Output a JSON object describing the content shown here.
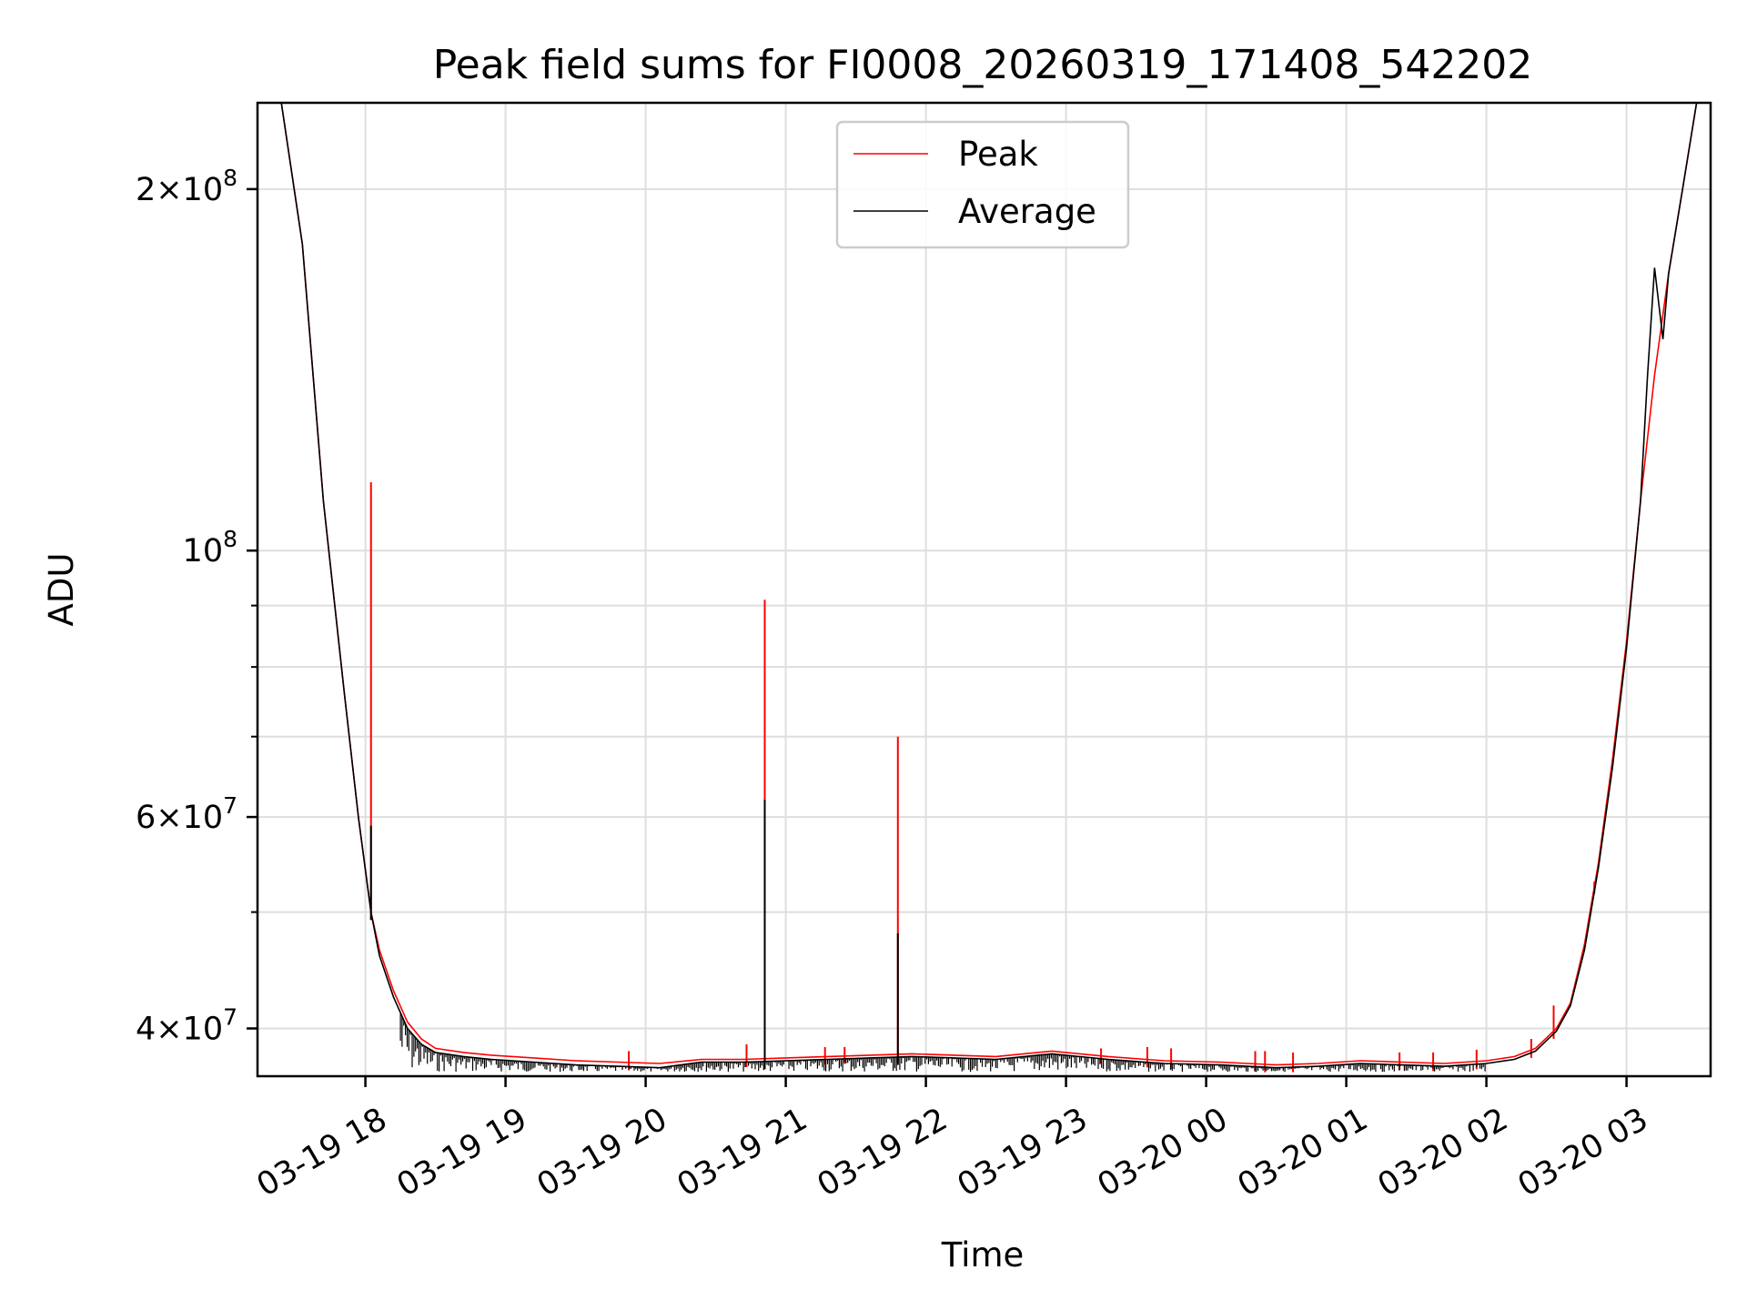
{
  "chart_data": {
    "type": "line",
    "title": "Peak field sums for FI0008_20260319_171408_542202",
    "xlabel": "Time",
    "ylabel": "ADU",
    "yscale": "log",
    "ylim": [
      36500000,
      236000000
    ],
    "xlim_hours": [
      17.23,
      27.6
    ],
    "grid": true,
    "legend_position": "upper-center",
    "x_ticks": [
      {
        "hour": 18,
        "label": "03-19 18"
      },
      {
        "hour": 19,
        "label": "03-19 19"
      },
      {
        "hour": 20,
        "label": "03-19 20"
      },
      {
        "hour": 21,
        "label": "03-19 21"
      },
      {
        "hour": 22,
        "label": "03-19 22"
      },
      {
        "hour": 23,
        "label": "03-19 23"
      },
      {
        "hour": 24,
        "label": "03-20 00"
      },
      {
        "hour": 25,
        "label": "03-20 01"
      },
      {
        "hour": 26,
        "label": "03-20 02"
      },
      {
        "hour": 27,
        "label": "03-20 03"
      }
    ],
    "y_ticks": [
      {
        "value": 40000000,
        "mantissa": "4",
        "exponent": "7"
      },
      {
        "value": 60000000,
        "mantissa": "6",
        "exponent": "7"
      },
      {
        "value": 100000000,
        "mantissa": "",
        "exponent": "8"
      },
      {
        "value": 200000000,
        "mantissa": "2",
        "exponent": "8"
      }
    ],
    "y_minor_ticks": [
      50000000,
      70000000,
      80000000,
      90000000
    ],
    "series": [
      {
        "name": "Peak",
        "color": "#ff0000",
        "x_hours": [
          17.23,
          17.4,
          17.55,
          17.7,
          17.85,
          17.95,
          18.04,
          18.1,
          18.2,
          18.3,
          18.4,
          18.5,
          18.7,
          18.9,
          19.2,
          19.5,
          19.8,
          20.1,
          20.4,
          20.7,
          21.0,
          21.3,
          21.6,
          21.9,
          22.2,
          22.5,
          22.9,
          23.3,
          23.7,
          24.1,
          24.5,
          24.8,
          25.1,
          25.4,
          25.7,
          26.0,
          26.2,
          26.35,
          26.5,
          26.6,
          26.7,
          26.8,
          26.9,
          27.0,
          27.1,
          27.2,
          27.3,
          27.4,
          27.5,
          27.6
        ],
        "values": [
          236000000,
          236000000,
          180000000,
          110000000,
          76000000,
          60000000,
          50000000,
          46500000,
          43000000,
          40500000,
          39200000,
          38500000,
          38200000,
          38000000,
          37800000,
          37600000,
          37500000,
          37400000,
          37700000,
          37700000,
          37800000,
          37900000,
          38000000,
          38100000,
          38000000,
          37900000,
          38300000,
          37900000,
          37600000,
          37500000,
          37300000,
          37400000,
          37600000,
          37500000,
          37400000,
          37600000,
          37900000,
          38500000,
          40000000,
          42000000,
          47000000,
          55000000,
          67000000,
          84000000,
          110000000,
          140000000,
          170000000,
          200000000,
          236000000,
          236000000
        ],
        "spikes": [
          {
            "hour": 18.04,
            "value": 114000000
          },
          {
            "hour": 20.85,
            "value": 91000000
          },
          {
            "hour": 21.8,
            "value": 70000000
          },
          {
            "hour": 19.88,
            "value": 38300000
          },
          {
            "hour": 20.72,
            "value": 38800000
          },
          {
            "hour": 21.28,
            "value": 38600000
          },
          {
            "hour": 21.42,
            "value": 38600000
          },
          {
            "hour": 23.25,
            "value": 38500000
          },
          {
            "hour": 23.58,
            "value": 38600000
          },
          {
            "hour": 23.75,
            "value": 38500000
          },
          {
            "hour": 24.35,
            "value": 38300000
          },
          {
            "hour": 24.42,
            "value": 38300000
          },
          {
            "hour": 24.62,
            "value": 38200000
          },
          {
            "hour": 25.38,
            "value": 38200000
          },
          {
            "hour": 25.62,
            "value": 38200000
          },
          {
            "hour": 25.93,
            "value": 38400000
          },
          {
            "hour": 26.32,
            "value": 39200000
          },
          {
            "hour": 26.48,
            "value": 41800000
          },
          {
            "hour": 26.77,
            "value": 53000000
          }
        ]
      },
      {
        "name": "Average",
        "color": "#000000",
        "x_hours": [
          17.23,
          17.4,
          17.55,
          17.7,
          17.85,
          17.95,
          18.04,
          18.1,
          18.2,
          18.3,
          18.4,
          18.5,
          18.7,
          18.9,
          19.2,
          19.5,
          19.8,
          20.1,
          20.4,
          20.7,
          21.0,
          21.3,
          21.6,
          21.9,
          22.2,
          22.5,
          22.9,
          23.3,
          23.7,
          24.1,
          24.5,
          24.8,
          25.1,
          25.4,
          25.7,
          26.0,
          26.2,
          26.35,
          26.5,
          26.6,
          26.7,
          26.8,
          26.9,
          27.0,
          27.1,
          27.15,
          27.2,
          27.26,
          27.3,
          27.4,
          27.5,
          27.6
        ],
        "values": [
          236000000,
          236000000,
          180000000,
          110000000,
          76000000,
          60000000,
          50000000,
          46000000,
          42500000,
          40000000,
          38800000,
          38200000,
          37900000,
          37700000,
          37500000,
          37300000,
          37200000,
          37100000,
          37500000,
          37500000,
          37600000,
          37700000,
          37800000,
          37900000,
          37800000,
          37700000,
          38100000,
          37700000,
          37400000,
          37300000,
          37100000,
          37200000,
          37400000,
          37300000,
          37200000,
          37400000,
          37700000,
          38300000,
          39800000,
          41800000,
          46500000,
          54500000,
          66000000,
          83000000,
          110000000,
          140000000,
          172000000,
          150000000,
          170000000,
          200000000,
          236000000,
          236000000
        ],
        "spikes": [
          {
            "hour": 18.04,
            "value": 59000000
          },
          {
            "hour": 20.85,
            "value": 62000000
          },
          {
            "hour": 21.8,
            "value": 48000000
          }
        ],
        "noise_floor": 36800000
      }
    ]
  }
}
